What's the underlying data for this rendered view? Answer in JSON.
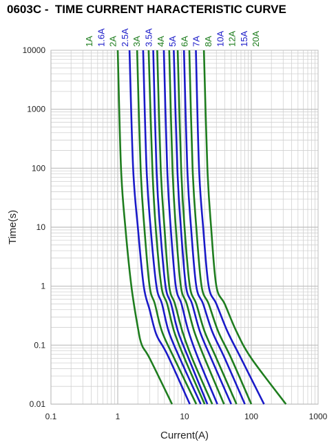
{
  "chart_data": {
    "type": "line",
    "title": "0603C -  TIME CURRENT HARACTERISTIC CURVE",
    "xlabel": "Current(A)",
    "ylabel": "Time(s)",
    "x_scale": "log",
    "y_scale": "log",
    "xlim": [
      0.1,
      1000
    ],
    "ylim": [
      0.01,
      10000
    ],
    "x_ticks": [
      "0.1",
      "1",
      "10",
      "100",
      "1000"
    ],
    "y_ticks": [
      "0.01",
      "0.1",
      "1",
      "10",
      "100",
      "1000",
      "10000"
    ],
    "grid": true,
    "legend": "series labels along top edge",
    "colors": {
      "green": "#1e7d1e",
      "blue": "#1a1ac8",
      "grid": "#d0d0d0",
      "major_grid": "#bdbdbd"
    },
    "series": [
      {
        "name": "1A",
        "color": "#1e7d1e",
        "points": [
          [
            1.0,
            10000
          ],
          [
            1.12,
            100
          ],
          [
            1.3,
            10
          ],
          [
            1.6,
            1
          ],
          [
            2.0,
            0.2
          ],
          [
            2.3,
            0.1
          ],
          [
            3.0,
            0.06
          ],
          [
            6.5,
            0.01
          ]
        ]
      },
      {
        "name": "1.6A",
        "color": "#1a1ac8",
        "points": [
          [
            1.5,
            10000
          ],
          [
            1.7,
            100
          ],
          [
            2.0,
            10
          ],
          [
            2.45,
            1
          ],
          [
            3.0,
            0.4
          ],
          [
            3.8,
            0.15
          ],
          [
            5.5,
            0.07
          ],
          [
            12.0,
            0.01
          ]
        ]
      },
      {
        "name": "2A",
        "color": "#1e7d1e",
        "points": [
          [
            1.95,
            10000
          ],
          [
            2.2,
            100
          ],
          [
            2.5,
            10
          ],
          [
            3.0,
            1
          ],
          [
            3.6,
            0.5
          ],
          [
            4.6,
            0.17
          ],
          [
            7.0,
            0.06
          ],
          [
            15.0,
            0.01
          ]
        ]
      },
      {
        "name": "2.5A",
        "color": "#1a1ac8",
        "points": [
          [
            2.4,
            10000
          ],
          [
            2.7,
            100
          ],
          [
            3.1,
            10
          ],
          [
            3.8,
            1
          ],
          [
            4.6,
            0.5
          ],
          [
            5.8,
            0.17
          ],
          [
            8.5,
            0.06
          ],
          [
            17.5,
            0.01
          ]
        ]
      },
      {
        "name": "3A",
        "color": "#1e7d1e",
        "points": [
          [
            2.9,
            10000
          ],
          [
            3.3,
            100
          ],
          [
            3.7,
            10
          ],
          [
            4.5,
            1
          ],
          [
            5.5,
            0.5
          ],
          [
            7.0,
            0.17
          ],
          [
            10.0,
            0.06
          ],
          [
            20.0,
            0.01
          ]
        ]
      },
      {
        "name": "3.5A",
        "color": "#1a1ac8",
        "points": [
          [
            3.4,
            10000
          ],
          [
            3.8,
            100
          ],
          [
            4.3,
            10
          ],
          [
            5.2,
            1
          ],
          [
            6.3,
            0.5
          ],
          [
            8.0,
            0.17
          ],
          [
            11.5,
            0.06
          ],
          [
            22.0,
            0.01
          ]
        ]
      },
      {
        "name": "4A",
        "color": "#1e7d1e",
        "points": [
          [
            3.9,
            10000
          ],
          [
            4.4,
            100
          ],
          [
            5.0,
            10
          ],
          [
            5.9,
            1
          ],
          [
            7.2,
            0.5
          ],
          [
            9.3,
            0.17
          ],
          [
            13.0,
            0.06
          ],
          [
            26.0,
            0.01
          ]
        ]
      },
      {
        "name": "5A",
        "color": "#1a1ac8",
        "points": [
          [
            4.9,
            10000
          ],
          [
            5.5,
            100
          ],
          [
            6.2,
            10
          ],
          [
            7.4,
            1
          ],
          [
            9.0,
            0.5
          ],
          [
            11.5,
            0.17
          ],
          [
            16.0,
            0.06
          ],
          [
            31.0,
            0.01
          ]
        ]
      },
      {
        "name": "6A",
        "color": "#1e7d1e",
        "points": [
          [
            5.9,
            10000
          ],
          [
            6.6,
            100
          ],
          [
            7.4,
            10
          ],
          [
            8.8,
            1
          ],
          [
            10.8,
            0.5
          ],
          [
            14.0,
            0.17
          ],
          [
            20.0,
            0.06
          ],
          [
            39.0,
            0.01
          ]
        ]
      },
      {
        "name": "7A",
        "color": "#1a1ac8",
        "points": [
          [
            6.9,
            10000
          ],
          [
            7.8,
            100
          ],
          [
            8.8,
            10
          ],
          [
            10.5,
            1
          ],
          [
            13.0,
            0.5
          ],
          [
            17.0,
            0.17
          ],
          [
            25.0,
            0.06
          ],
          [
            50.0,
            0.01
          ]
        ]
      },
      {
        "name": "8A",
        "color": "#1e7d1e",
        "points": [
          [
            7.9,
            10000
          ],
          [
            8.9,
            100
          ],
          [
            10.0,
            10
          ],
          [
            12.0,
            1
          ],
          [
            15.0,
            0.5
          ],
          [
            20.0,
            0.17
          ],
          [
            30.0,
            0.06
          ],
          [
            60.0,
            0.01
          ]
        ]
      },
      {
        "name": "10A",
        "color": "#1a1ac8",
        "points": [
          [
            9.8,
            10000
          ],
          [
            11.0,
            100
          ],
          [
            12.5,
            10
          ],
          [
            15.0,
            1
          ],
          [
            19.0,
            0.5
          ],
          [
            26.0,
            0.17
          ],
          [
            40.0,
            0.06
          ],
          [
            80.0,
            0.01
          ]
        ]
      },
      {
        "name": "12A",
        "color": "#1e7d1e",
        "points": [
          [
            11.8,
            10000
          ],
          [
            13.2,
            100
          ],
          [
            15.0,
            10
          ],
          [
            18.0,
            1
          ],
          [
            23.0,
            0.5
          ],
          [
            32.0,
            0.17
          ],
          [
            50.0,
            0.06
          ],
          [
            100.0,
            0.01
          ]
        ]
      },
      {
        "name": "15A",
        "color": "#1a1ac8",
        "points": [
          [
            14.8,
            10000
          ],
          [
            16.5,
            100
          ],
          [
            19.0,
            10
          ],
          [
            23.0,
            1
          ],
          [
            30.0,
            0.5
          ],
          [
            44.0,
            0.17
          ],
          [
            70.0,
            0.06
          ],
          [
            155.0,
            0.01
          ]
        ]
      },
      {
        "name": "20A",
        "color": "#1e7d1e",
        "points": [
          [
            19.5,
            10000
          ],
          [
            22.0,
            100
          ],
          [
            25.0,
            10
          ],
          [
            30.0,
            1
          ],
          [
            40.0,
            0.5
          ],
          [
            60.0,
            0.17
          ],
          [
            100.0,
            0.06
          ],
          [
            330.0,
            0.01
          ]
        ]
      }
    ]
  }
}
